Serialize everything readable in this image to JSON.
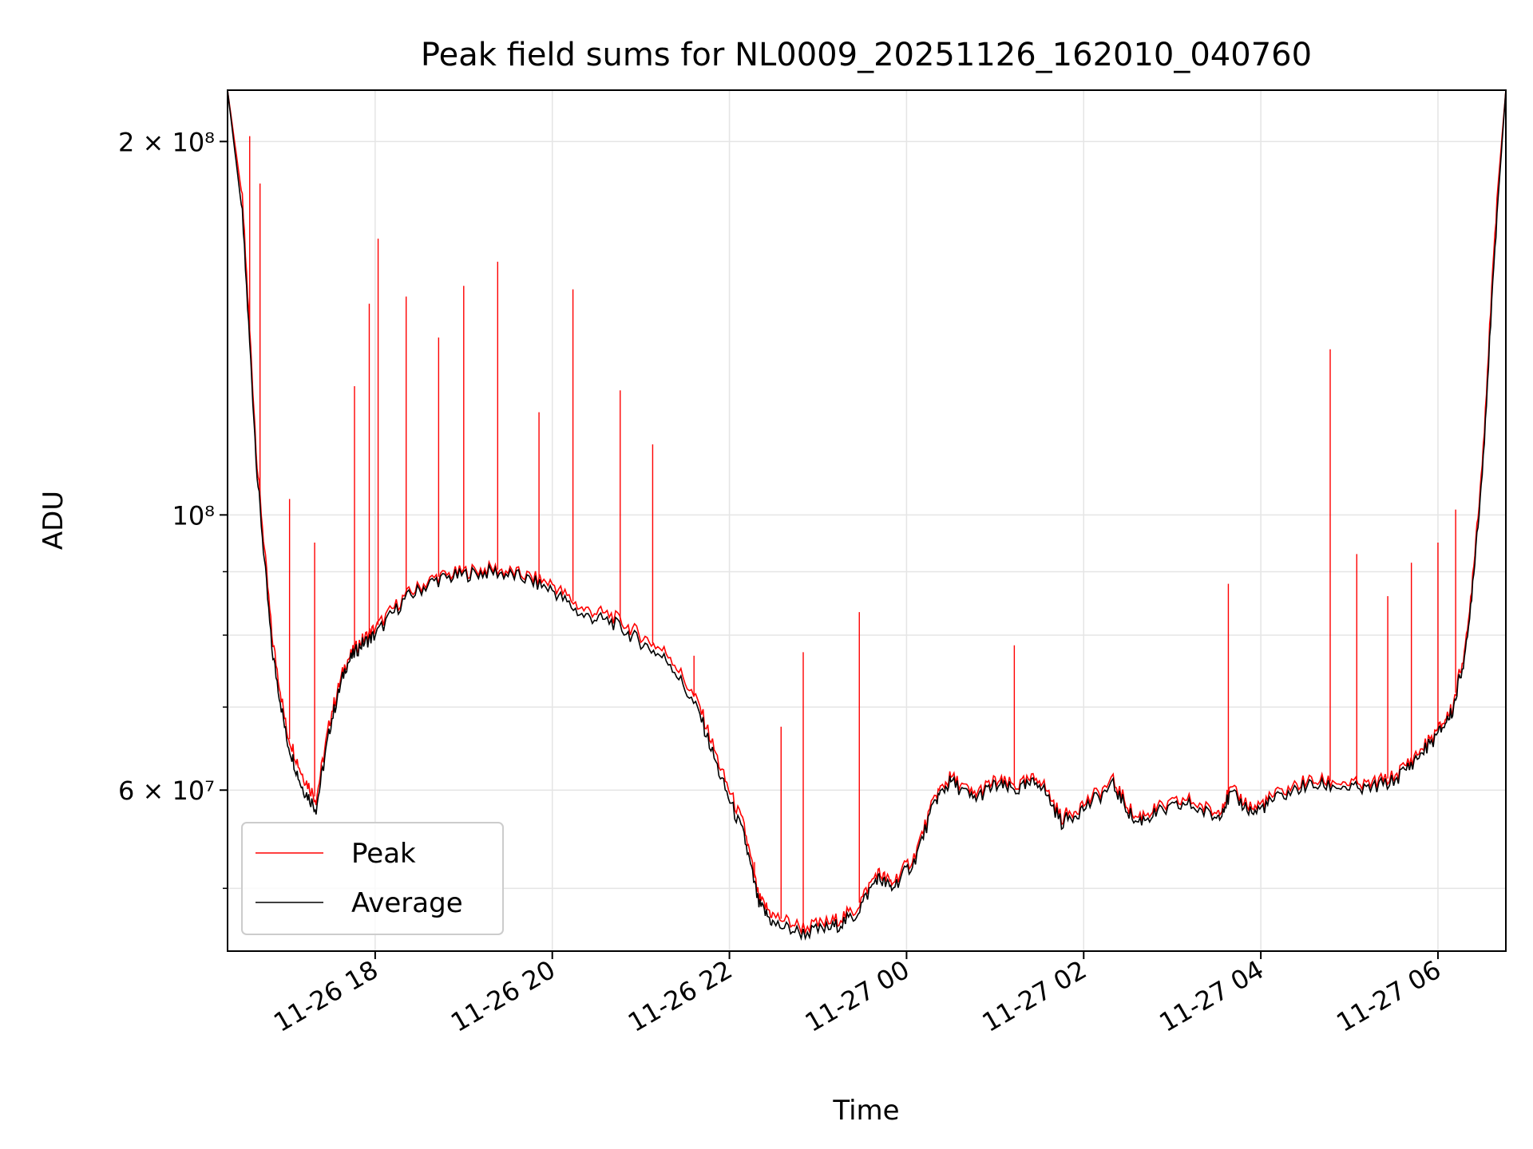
{
  "chart_data": {
    "type": "line",
    "title": "Peak field sums for NL0009_20251126_162010_040760",
    "xlabel": "Time",
    "ylabel": "ADU",
    "yscale": "log",
    "ylim": [
      44500000,
      220000000
    ],
    "xlim": [
      "2025-11-26 16:20",
      "2025-11-27 06:46"
    ],
    "x_ticks": [
      {
        "t": "2025-11-26 18:00",
        "label": "11-26 18"
      },
      {
        "t": "2025-11-26 20:00",
        "label": "11-26 20"
      },
      {
        "t": "2025-11-26 22:00",
        "label": "11-26 22"
      },
      {
        "t": "2025-11-27 00:00",
        "label": "11-27 00"
      },
      {
        "t": "2025-11-27 02:00",
        "label": "11-27 02"
      },
      {
        "t": "2025-11-27 04:00",
        "label": "11-27 04"
      },
      {
        "t": "2025-11-27 06:00",
        "label": "11-27 06"
      }
    ],
    "y_ticks_major": [
      {
        "v": 60000000,
        "label": "6 × 10⁷"
      },
      {
        "v": 100000000,
        "label": "10⁸"
      },
      {
        "v": 200000000,
        "label": "2 × 10⁸"
      }
    ],
    "y_ticks_minor": [
      50000000,
      70000000,
      80000000,
      90000000
    ],
    "grid": true,
    "legend_position": "lower-left",
    "series": [
      {
        "name": "Peak",
        "color": "#ff0000",
        "x": [
          "2025-11-26 16:20",
          "2025-11-26 16:30",
          "2025-11-26 16:40",
          "2025-11-26 16:50",
          "2025-11-26 17:00",
          "2025-11-26 17:10",
          "2025-11-26 17:20",
          "2025-11-26 17:30",
          "2025-11-26 17:40",
          "2025-11-26 17:50",
          "2025-11-26 18:00",
          "2025-11-26 18:20",
          "2025-11-26 18:40",
          "2025-11-26 19:00",
          "2025-11-26 19:20",
          "2025-11-26 19:40",
          "2025-11-26 20:00",
          "2025-11-26 20:20",
          "2025-11-26 20:40",
          "2025-11-26 21:00",
          "2025-11-26 21:20",
          "2025-11-26 21:40",
          "2025-11-26 21:55",
          "2025-11-26 22:10",
          "2025-11-26 22:20",
          "2025-11-26 22:30",
          "2025-11-26 22:50",
          "2025-11-26 23:10",
          "2025-11-26 23:25",
          "2025-11-26 23:40",
          "2025-11-26 23:50",
          "2025-11-27 00:05",
          "2025-11-27 00:20",
          "2025-11-27 00:30",
          "2025-11-27 00:45",
          "2025-11-27 01:00",
          "2025-11-27 01:15",
          "2025-11-27 01:30",
          "2025-11-27 01:45",
          "2025-11-27 02:00",
          "2025-11-27 02:20",
          "2025-11-27 02:35",
          "2025-11-27 02:50",
          "2025-11-27 03:10",
          "2025-11-27 03:30",
          "2025-11-27 03:40",
          "2025-11-27 03:55",
          "2025-11-27 04:10",
          "2025-11-27 04:30",
          "2025-11-27 04:50",
          "2025-11-27 05:10",
          "2025-11-27 05:30",
          "2025-11-27 05:45",
          "2025-11-27 06:00",
          "2025-11-27 06:10",
          "2025-11-27 06:20",
          "2025-11-27 06:30",
          "2025-11-27 06:40",
          "2025-11-27 06:46"
        ],
        "y": [
          220000000,
          180000000,
          110000000,
          80000000,
          67000000,
          62000000,
          59000000,
          69000000,
          76000000,
          79000000,
          81000000,
          86000000,
          89000000,
          90000000,
          90500000,
          89500000,
          88000000,
          84000000,
          83000000,
          80000000,
          77000000,
          70000000,
          62000000,
          56000000,
          49000000,
          47500000,
          46500000,
          47000000,
          48000000,
          51500000,
          50500000,
          53000000,
          59500000,
          61500000,
          59500000,
          61000000,
          60500000,
          61500000,
          57000000,
          58500000,
          61000000,
          57000000,
          58000000,
          59000000,
          57500000,
          60000000,
          58000000,
          59500000,
          61000000,
          61000000,
          60500000,
          61500000,
          64000000,
          67000000,
          70000000,
          80000000,
          110000000,
          180000000,
          220000000
        ],
        "spikes": [
          {
            "x": "2025-11-26 16:35",
            "y": 202000000
          },
          {
            "x": "2025-11-26 16:42",
            "y": 185000000
          },
          {
            "x": "2025-11-26 17:02",
            "y": 103000000
          },
          {
            "x": "2025-11-26 17:19",
            "y": 95000000
          },
          {
            "x": "2025-11-26 17:46",
            "y": 127000000
          },
          {
            "x": "2025-11-26 17:56",
            "y": 148000000
          },
          {
            "x": "2025-11-26 18:02",
            "y": 167000000
          },
          {
            "x": "2025-11-26 18:21",
            "y": 150000000
          },
          {
            "x": "2025-11-26 18:43",
            "y": 139000000
          },
          {
            "x": "2025-11-26 19:00",
            "y": 153000000
          },
          {
            "x": "2025-11-26 19:23",
            "y": 160000000
          },
          {
            "x": "2025-11-26 19:51",
            "y": 121000000
          },
          {
            "x": "2025-11-26 20:14",
            "y": 152000000
          },
          {
            "x": "2025-11-26 20:46",
            "y": 126000000
          },
          {
            "x": "2025-11-26 21:08",
            "y": 114000000
          },
          {
            "x": "2025-11-26 21:36",
            "y": 77000000
          },
          {
            "x": "2025-11-26 22:17",
            "y": 52500000
          },
          {
            "x": "2025-11-26 22:35",
            "y": 67500000
          },
          {
            "x": "2025-11-26 22:50",
            "y": 77500000
          },
          {
            "x": "2025-11-26 23:28",
            "y": 83500000
          },
          {
            "x": "2025-11-27 01:13",
            "y": 78500000
          },
          {
            "x": "2025-11-27 03:38",
            "y": 88000000
          },
          {
            "x": "2025-11-27 04:47",
            "y": 136000000
          },
          {
            "x": "2025-11-27 05:05",
            "y": 93000000
          },
          {
            "x": "2025-11-27 05:26",
            "y": 86000000
          },
          {
            "x": "2025-11-27 05:42",
            "y": 91500000
          },
          {
            "x": "2025-11-27 06:00",
            "y": 95000000
          },
          {
            "x": "2025-11-27 06:12",
            "y": 101000000
          }
        ]
      },
      {
        "name": "Average",
        "color": "#000000",
        "x": [
          "2025-11-26 16:20",
          "2025-11-26 16:30",
          "2025-11-26 16:40",
          "2025-11-26 16:50",
          "2025-11-26 17:00",
          "2025-11-26 17:10",
          "2025-11-26 17:20",
          "2025-11-26 17:30",
          "2025-11-26 17:40",
          "2025-11-26 17:50",
          "2025-11-26 18:00",
          "2025-11-26 18:20",
          "2025-11-26 18:40",
          "2025-11-26 19:00",
          "2025-11-26 19:20",
          "2025-11-26 19:40",
          "2025-11-26 20:00",
          "2025-11-26 20:20",
          "2025-11-26 20:40",
          "2025-11-26 21:00",
          "2025-11-26 21:20",
          "2025-11-26 21:40",
          "2025-11-26 21:55",
          "2025-11-26 22:10",
          "2025-11-26 22:20",
          "2025-11-26 22:30",
          "2025-11-26 22:50",
          "2025-11-26 23:10",
          "2025-11-26 23:25",
          "2025-11-26 23:40",
          "2025-11-26 23:50",
          "2025-11-27 00:05",
          "2025-11-27 00:20",
          "2025-11-27 00:30",
          "2025-11-27 00:45",
          "2025-11-27 01:00",
          "2025-11-27 01:15",
          "2025-11-27 01:30",
          "2025-11-27 01:45",
          "2025-11-27 02:00",
          "2025-11-27 02:20",
          "2025-11-27 02:35",
          "2025-11-27 02:50",
          "2025-11-27 03:10",
          "2025-11-27 03:30",
          "2025-11-27 03:40",
          "2025-11-27 03:55",
          "2025-11-27 04:10",
          "2025-11-27 04:30",
          "2025-11-27 04:50",
          "2025-11-27 05:10",
          "2025-11-27 05:30",
          "2025-11-27 05:45",
          "2025-11-27 06:00",
          "2025-11-27 06:10",
          "2025-11-27 06:20",
          "2025-11-27 06:30",
          "2025-11-27 06:40",
          "2025-11-27 06:46"
        ],
        "y": [
          220000000,
          175000000,
          108000000,
          78000000,
          66000000,
          60500000,
          58000000,
          68000000,
          75500000,
          78500000,
          80000000,
          85500000,
          88500000,
          89500000,
          90000000,
          89000000,
          87000000,
          83000000,
          82000000,
          79000000,
          76000000,
          69000000,
          61000000,
          55000000,
          48500000,
          46800000,
          46000000,
          46500000,
          47500000,
          51000000,
          50000000,
          52500000,
          59000000,
          61000000,
          59000000,
          60500000,
          60000000,
          61000000,
          56500000,
          58000000,
          60500000,
          56500000,
          57500000,
          58500000,
          57000000,
          59500000,
          57500000,
          59000000,
          60500000,
          60500000,
          60000000,
          61000000,
          63500000,
          66500000,
          69500000,
          79000000,
          108000000,
          175000000,
          220000000
        ]
      }
    ]
  }
}
